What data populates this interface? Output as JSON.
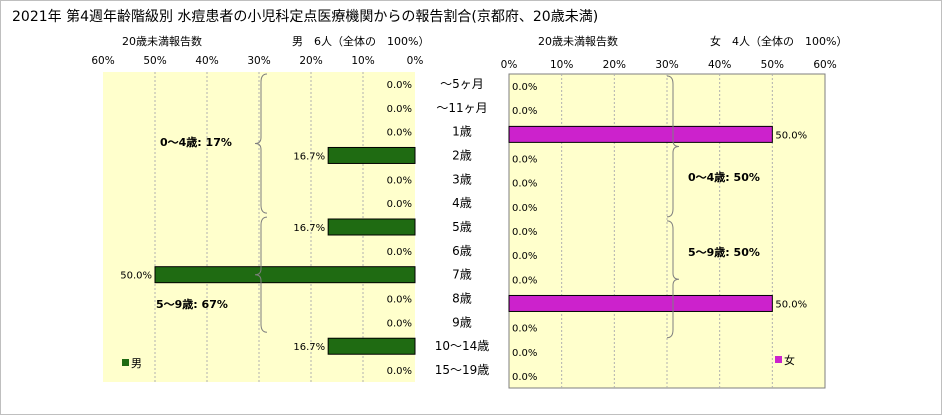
{
  "title": "2021年 第4週年齢階級別 水痘患者の小児科定点医療機関からの報告割合(京都府、20歳未満)",
  "left": {
    "caption": "20歳未満報告数",
    "header": "男　6人（全体の　100%）"
  },
  "right": {
    "caption": "20歳未満報告数",
    "header": "女　4人（全体の　100%）"
  },
  "chart_data": {
    "type": "bar",
    "orientation": "horizontal-pyramid",
    "categories": [
      "～5ヶ月",
      "～11ヶ月",
      "1歳",
      "2歳",
      "3歳",
      "4歳",
      "5歳",
      "6歳",
      "7歳",
      "8歳",
      "9歳",
      "10～14歳",
      "15～19歳"
    ],
    "xlim": [
      0,
      60
    ],
    "xticks": [
      "0%",
      "10%",
      "20%",
      "30%",
      "40%",
      "50%",
      "60%"
    ],
    "series": [
      {
        "name": "男",
        "color": "#1f6b12",
        "values": [
          0.0,
          0.0,
          0.0,
          16.7,
          0.0,
          0.0,
          16.7,
          0.0,
          50.0,
          0.0,
          0.0,
          16.7,
          0.0
        ],
        "labels": [
          "0.0%",
          "0.0%",
          "0.0%",
          "16.7%",
          "0.0%",
          "0.0%",
          "16.7%",
          "0.0%",
          "50.0%",
          "0.0%",
          "0.0%",
          "16.7%",
          "0.0%"
        ]
      },
      {
        "name": "女",
        "color": "#cc22cc",
        "values": [
          0.0,
          0.0,
          50.0,
          0.0,
          0.0,
          0.0,
          0.0,
          0.0,
          0.0,
          50.0,
          0.0,
          0.0,
          0.0
        ],
        "labels": [
          "0.0%",
          "0.0%",
          "50.0%",
          "0.0%",
          "0.0%",
          "0.0%",
          "0.0%",
          "0.0%",
          "0.0%",
          "50.0%",
          "0.0%",
          "0.0%",
          "0.0%"
        ]
      }
    ],
    "annotations": {
      "male_0_4": "0～4歳: 17%",
      "male_5_9": "5～9歳: 67%",
      "female_0_4": "0～4歳: 50%",
      "female_5_9": "5～9歳: 50%"
    },
    "plot_background": "#ffffcc",
    "grid": "vertical dashed"
  }
}
